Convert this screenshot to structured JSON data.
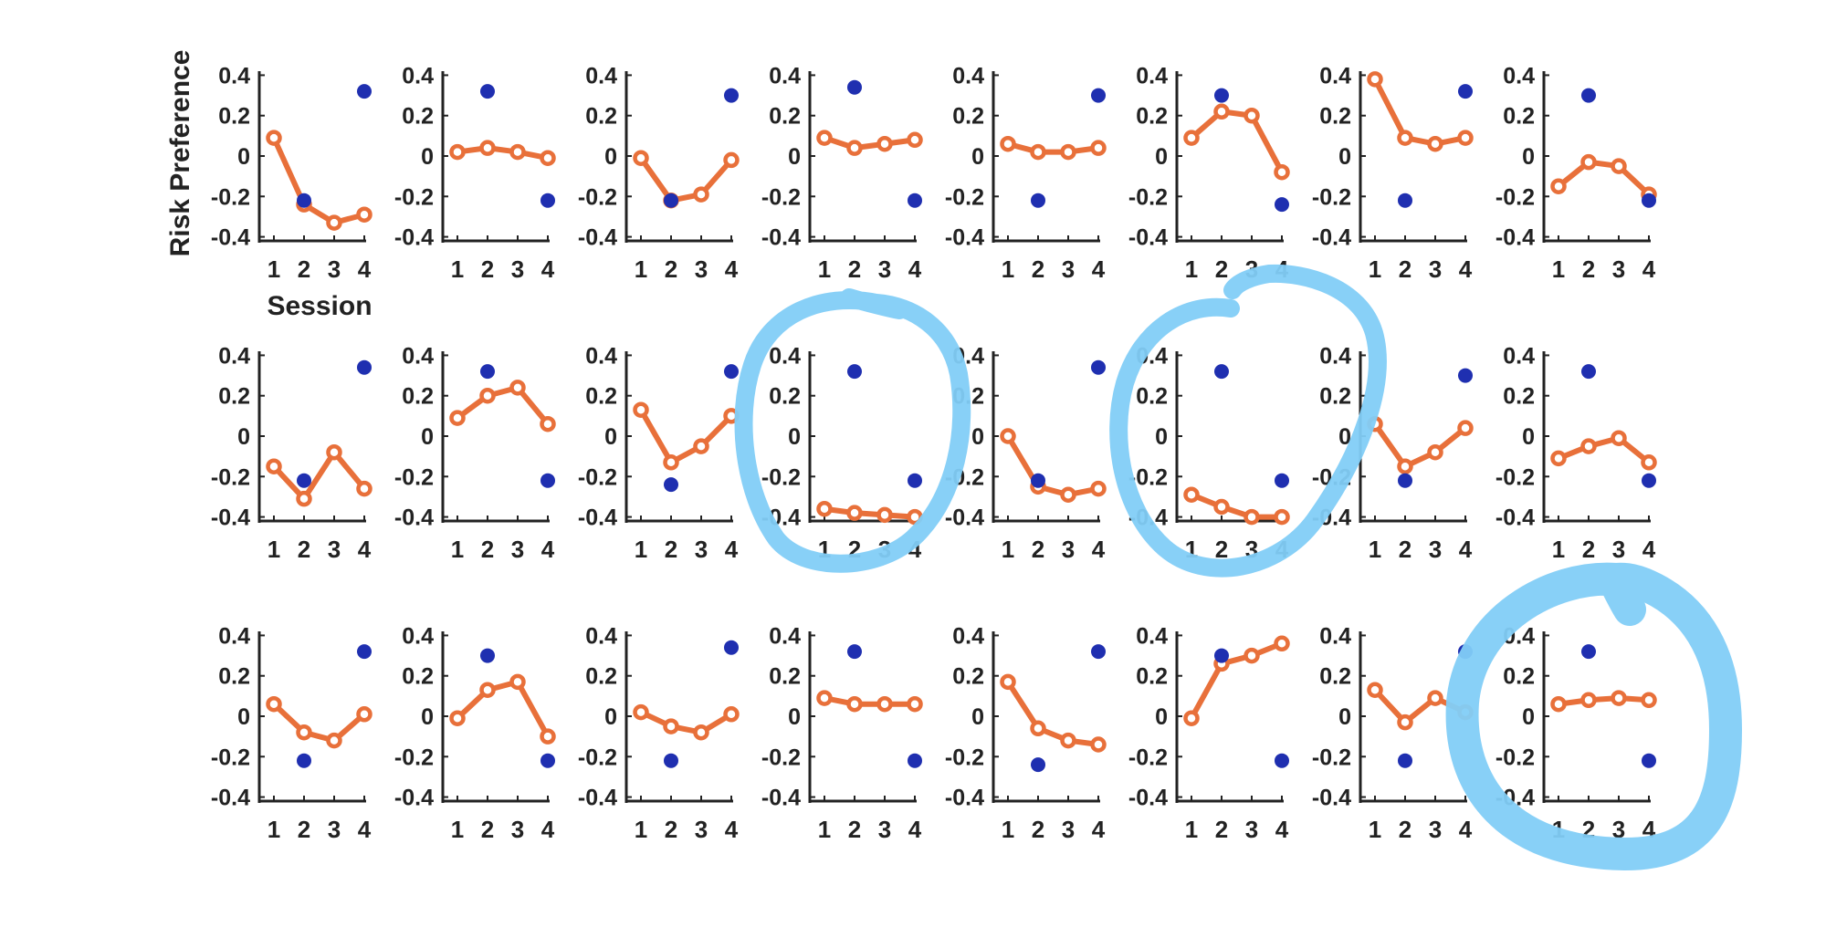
{
  "figure": {
    "ylabel": "Risk Preference",
    "xlabel": "Session"
  },
  "colors": {
    "line_series": "#e8703a",
    "point_series": "#1f2fb0",
    "annotation_circle": "#82cdf7",
    "axis": "#222222"
  },
  "chart_data": {
    "type": "line",
    "layout": "3x8 grid of small multiples",
    "xlabel": "Session",
    "ylabel": "Risk Preference",
    "x": [
      1,
      2,
      3,
      4
    ],
    "x_ticks": [
      "1",
      "2",
      "3",
      "4"
    ],
    "y_ticks": [
      "0.4",
      "0.2",
      "0",
      "-0.2",
      "-0.4"
    ],
    "ylim": [
      -0.42,
      0.42
    ],
    "grid": false,
    "legend": "none",
    "annotations": [
      "hand-drawn circle around row 2 panel 4",
      "hand-drawn circle around row 2 panel 6",
      "hand-drawn circle around row 3 panel 8"
    ],
    "panels": [
      {
        "line": [
          0.09,
          -0.24,
          -0.33,
          -0.29
        ],
        "dots": [
          {
            "x": 4,
            "y": 0.32
          },
          {
            "x": 2,
            "y": -0.22
          }
        ]
      },
      {
        "line": [
          0.02,
          0.04,
          0.02,
          -0.01
        ],
        "dots": [
          {
            "x": 2,
            "y": 0.32
          },
          {
            "x": 4,
            "y": -0.22
          }
        ]
      },
      {
        "line": [
          -0.01,
          -0.22,
          -0.19,
          -0.02
        ],
        "dots": [
          {
            "x": 4,
            "y": 0.3
          },
          {
            "x": 2,
            "y": -0.22
          }
        ]
      },
      {
        "line": [
          0.09,
          0.04,
          0.06,
          0.08
        ],
        "dots": [
          {
            "x": 2,
            "y": 0.34
          },
          {
            "x": 4,
            "y": -0.22
          }
        ]
      },
      {
        "line": [
          0.06,
          0.02,
          0.02,
          0.04
        ],
        "dots": [
          {
            "x": 4,
            "y": 0.3
          },
          {
            "x": 2,
            "y": -0.22
          }
        ]
      },
      {
        "line": [
          0.09,
          0.22,
          0.2,
          -0.08
        ],
        "dots": [
          {
            "x": 2,
            "y": 0.3
          },
          {
            "x": 4,
            "y": -0.24
          }
        ]
      },
      {
        "line": [
          0.38,
          0.09,
          0.06,
          0.09
        ],
        "dots": [
          {
            "x": 4,
            "y": 0.32
          },
          {
            "x": 2,
            "y": -0.22
          }
        ]
      },
      {
        "line": [
          -0.15,
          -0.03,
          -0.05,
          -0.19
        ],
        "dots": [
          {
            "x": 2,
            "y": 0.3
          },
          {
            "x": 4,
            "y": -0.22
          }
        ]
      },
      {
        "line": [
          -0.15,
          -0.31,
          -0.08,
          -0.26
        ],
        "dots": [
          {
            "x": 4,
            "y": 0.34
          },
          {
            "x": 2,
            "y": -0.22
          }
        ]
      },
      {
        "line": [
          0.09,
          0.2,
          0.24,
          0.06
        ],
        "dots": [
          {
            "x": 2,
            "y": 0.32
          },
          {
            "x": 4,
            "y": -0.22
          }
        ]
      },
      {
        "line": [
          0.13,
          -0.13,
          -0.05,
          0.1
        ],
        "dots": [
          {
            "x": 4,
            "y": 0.32
          },
          {
            "x": 2,
            "y": -0.24
          }
        ]
      },
      {
        "line": [
          -0.36,
          -0.38,
          -0.39,
          -0.4
        ],
        "dots": [
          {
            "x": 2,
            "y": 0.32
          },
          {
            "x": 4,
            "y": -0.22
          }
        ]
      },
      {
        "line": [
          0.0,
          -0.25,
          -0.29,
          -0.26
        ],
        "dots": [
          {
            "x": 4,
            "y": 0.34
          },
          {
            "x": 2,
            "y": -0.22
          }
        ]
      },
      {
        "line": [
          -0.29,
          -0.35,
          -0.4,
          -0.4
        ],
        "dots": [
          {
            "x": 2,
            "y": 0.32
          },
          {
            "x": 4,
            "y": -0.22
          }
        ]
      },
      {
        "line": [
          0.06,
          -0.15,
          -0.08,
          0.04
        ],
        "dots": [
          {
            "x": 4,
            "y": 0.3
          },
          {
            "x": 2,
            "y": -0.22
          }
        ]
      },
      {
        "line": [
          -0.11,
          -0.05,
          -0.01,
          -0.13
        ],
        "dots": [
          {
            "x": 2,
            "y": 0.32
          },
          {
            "x": 4,
            "y": -0.22
          }
        ]
      },
      {
        "line": [
          0.06,
          -0.08,
          -0.12,
          0.01
        ],
        "dots": [
          {
            "x": 4,
            "y": 0.32
          },
          {
            "x": 2,
            "y": -0.22
          }
        ]
      },
      {
        "line": [
          -0.01,
          0.13,
          0.17,
          -0.1
        ],
        "dots": [
          {
            "x": 2,
            "y": 0.3
          },
          {
            "x": 4,
            "y": -0.22
          }
        ]
      },
      {
        "line": [
          0.02,
          -0.05,
          -0.08,
          0.01
        ],
        "dots": [
          {
            "x": 4,
            "y": 0.34
          },
          {
            "x": 2,
            "y": -0.22
          }
        ]
      },
      {
        "line": [
          0.09,
          0.06,
          0.06,
          0.06
        ],
        "dots": [
          {
            "x": 2,
            "y": 0.32
          },
          {
            "x": 4,
            "y": -0.22
          }
        ]
      },
      {
        "line": [
          0.17,
          -0.06,
          -0.12,
          -0.14
        ],
        "dots": [
          {
            "x": 4,
            "y": 0.32
          },
          {
            "x": 2,
            "y": -0.24
          }
        ]
      },
      {
        "line": [
          -0.01,
          0.26,
          0.3,
          0.36
        ],
        "dots": [
          {
            "x": 2,
            "y": 0.3
          },
          {
            "x": 4,
            "y": -0.22
          }
        ]
      },
      {
        "line": [
          0.13,
          -0.03,
          0.09,
          0.02
        ],
        "dots": [
          {
            "x": 4,
            "y": 0.32
          },
          {
            "x": 2,
            "y": -0.22
          }
        ]
      },
      {
        "line": [
          0.06,
          0.08,
          0.09,
          0.08
        ],
        "dots": [
          {
            "x": 2,
            "y": 0.32
          },
          {
            "x": 4,
            "y": -0.22
          }
        ]
      }
    ]
  }
}
